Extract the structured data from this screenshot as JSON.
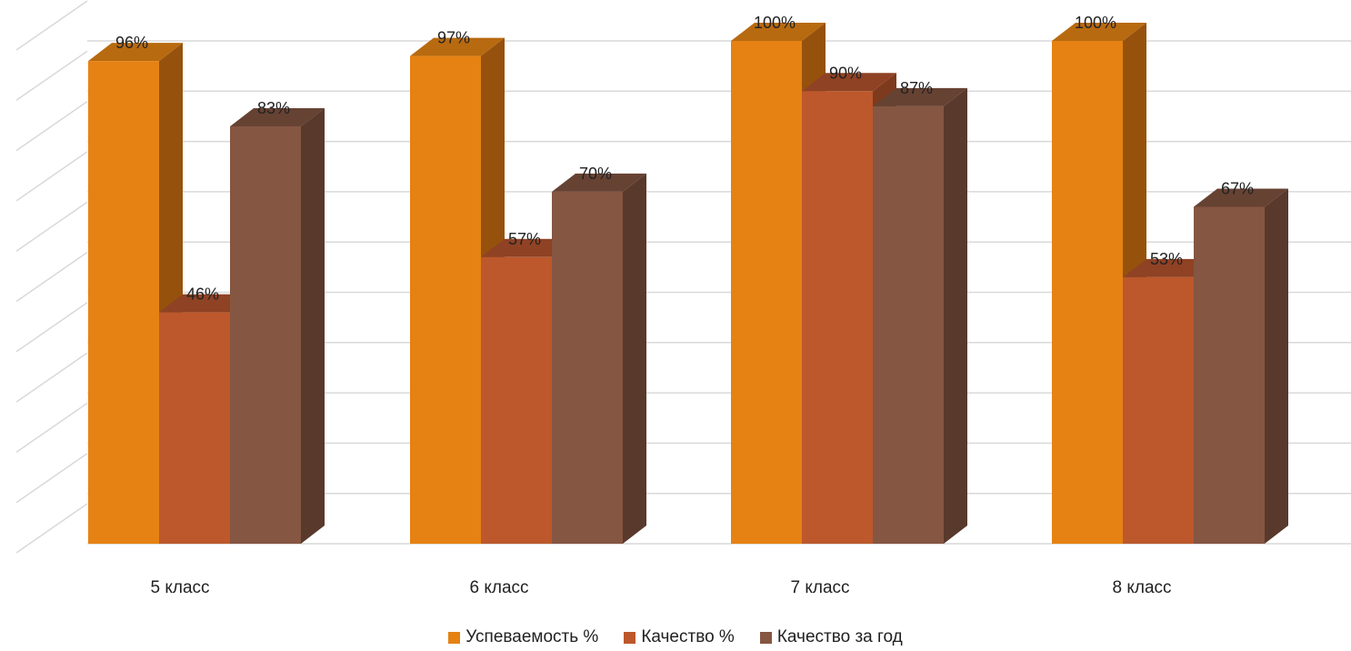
{
  "chart_data": {
    "type": "bar",
    "categories": [
      "5 класс",
      "6 класс",
      "7 класс",
      "8 класс"
    ],
    "series": [
      {
        "name": "Успеваемость %",
        "values": [
          96,
          97,
          100,
          100
        ],
        "labels": [
          "96%",
          "97%",
          "100%",
          "100%"
        ],
        "color": "#E58213",
        "side_color": "#96520D",
        "top_color": "#B86A10"
      },
      {
        "name": "Качество %",
        "values": [
          46,
          57,
          90,
          53
        ],
        "labels": [
          "46%",
          "57%",
          "90%",
          "53%"
        ],
        "color": "#BC582C",
        "side_color": "#7E3A1D",
        "top_color": "#8F4224"
      },
      {
        "name": "Качество за год",
        "values": [
          83,
          70,
          87,
          67
        ],
        "labels": [
          "83%",
          "70%",
          "87%",
          "67%"
        ],
        "color": "#855641",
        "side_color": "#59392C",
        "top_color": "#664233"
      }
    ],
    "ylim": [
      0,
      100
    ],
    "grid": true,
    "legend_position": "bottom",
    "projection": "3d-column"
  }
}
